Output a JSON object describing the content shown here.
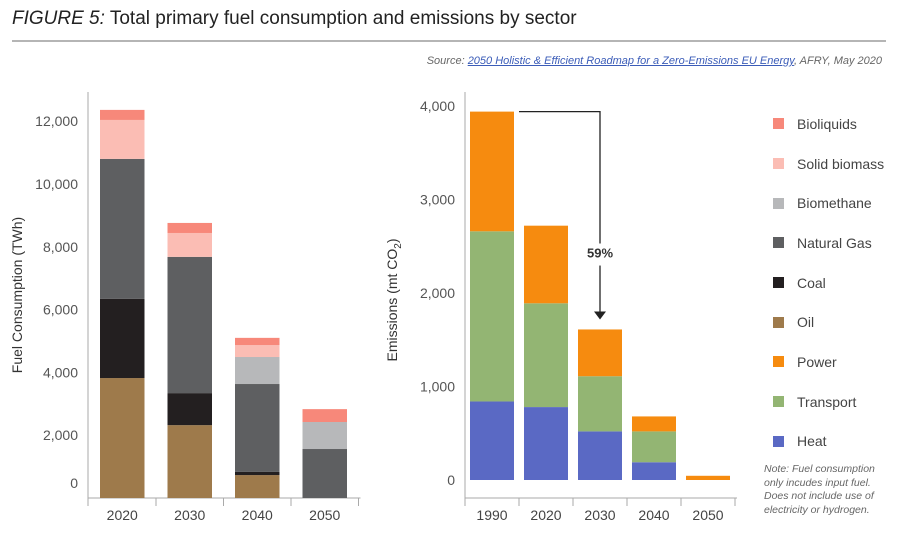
{
  "header": {
    "figure_label": "FIGURE 5:",
    "title": "Total primary fuel consumption and emissions by sector"
  },
  "source": {
    "prefix": "Source: ",
    "link_text": "2050 Holistic & Efficient Roadmap for a Zero-Emissions EU Energy",
    "suffix": ", AFRY, May 2020"
  },
  "legend": [
    {
      "name": "Bioliquids",
      "color": "#f7887a"
    },
    {
      "name": "Solid biomass",
      "color": "#fbbdb4"
    },
    {
      "name": "Biomethane",
      "color": "#b7b8ba"
    },
    {
      "name": "Natural Gas",
      "color": "#5e5f61"
    },
    {
      "name": "Coal",
      "color": "#231f20"
    },
    {
      "name": "Oil",
      "color": "#9e7a4b"
    },
    {
      "name": "Power",
      "color": "#f68b0f"
    },
    {
      "name": "Transport",
      "color": "#93b573"
    },
    {
      "name": "Heat",
      "color": "#5a69c4"
    }
  ],
  "note": "Note: Fuel consumption only incudes input fuel. Does not include use of electricity or hydrogen.",
  "chart_data": [
    {
      "type": "bar",
      "stacked": true,
      "title": "Fuel consumption",
      "xlabel": "",
      "ylabel": "Fuel Consumption (TWh)",
      "categories": [
        "2020",
        "2030",
        "2040",
        "2050"
      ],
      "ylim": [
        0,
        12500
      ],
      "yticks": [
        0,
        2000,
        4000,
        6000,
        8000,
        10000,
        12000
      ],
      "ytick_labels": [
        "0",
        "2,000",
        "4,000",
        "6,000",
        "8,000",
        "10,000",
        "12,000"
      ],
      "grid": false,
      "series": [
        {
          "name": "Oil",
          "color": "#9e7a4b",
          "values": [
            3820,
            2320,
            730,
            0
          ]
        },
        {
          "name": "Coal",
          "color": "#231f20",
          "values": [
            2520,
            1020,
            100,
            0
          ]
        },
        {
          "name": "Natural Gas",
          "color": "#5e5f61",
          "values": [
            4460,
            4340,
            2800,
            1560
          ]
        },
        {
          "name": "Biomethane",
          "color": "#b7b8ba",
          "values": [
            0,
            0,
            860,
            860
          ]
        },
        {
          "name": "Solid biomass",
          "color": "#fbbdb4",
          "values": [
            1240,
            760,
            380,
            0
          ]
        },
        {
          "name": "Bioliquids",
          "color": "#f7887a",
          "values": [
            320,
            320,
            230,
            410
          ]
        }
      ]
    },
    {
      "type": "bar",
      "stacked": true,
      "title": "Emissions",
      "xlabel": "",
      "ylabel": "Emissions (mt CO2)",
      "ylabel_main": "Emissions (mt CO",
      "ylabel_sub": "2",
      "ylabel_close": ")",
      "categories": [
        "1990",
        "2020",
        "2030",
        "2040",
        "2050"
      ],
      "ylim": [
        0,
        4100
      ],
      "yticks": [
        0,
        1000,
        2000,
        3000,
        4000
      ],
      "ytick_labels": [
        "0",
        "1,000",
        "2,000",
        "3,000",
        "4,000"
      ],
      "grid": false,
      "series": [
        {
          "name": "Heat",
          "color": "#5a69c4",
          "values": [
            840,
            780,
            520,
            190,
            0
          ]
        },
        {
          "name": "Transport",
          "color": "#93b573",
          "values": [
            1820,
            1110,
            590,
            330,
            0
          ]
        },
        {
          "name": "Power",
          "color": "#f68b0f",
          "values": [
            1280,
            830,
            500,
            160,
            45
          ]
        }
      ],
      "annotation": {
        "text": "59%",
        "from": "1990",
        "to": "2030",
        "description": "reduction from 1990 to 2030"
      }
    }
  ]
}
